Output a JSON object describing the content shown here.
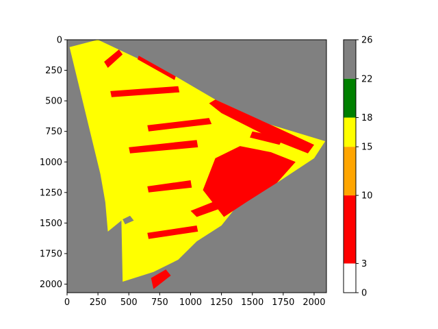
{
  "chart_data": {
    "type": "heatmap",
    "title": "",
    "xlabel": "",
    "ylabel": "",
    "xlim": [
      0,
      2100
    ],
    "ylim": [
      2070,
      0
    ],
    "x_ticks": [
      "0",
      "250",
      "500",
      "750",
      "1000",
      "1250",
      "1500",
      "1750",
      "2000"
    ],
    "y_ticks": [
      "0",
      "250",
      "500",
      "750",
      "1000",
      "1250",
      "1500",
      "1750",
      "2000"
    ],
    "background_color": "#808080",
    "colorbar": {
      "vmin": 0,
      "vmax": 26,
      "tick_labels": [
        "0",
        "3",
        "10",
        "15",
        "18",
        "22",
        "26"
      ],
      "segments": [
        {
          "from": 0,
          "to": 3,
          "color": "#ffffff"
        },
        {
          "from": 3,
          "to": 10,
          "color": "#ff0000"
        },
        {
          "from": 10,
          "to": 15,
          "color": "#ffa500"
        },
        {
          "from": 15,
          "to": 18,
          "color": "#ffff00"
        },
        {
          "from": 18,
          "to": 22,
          "color": "#008000"
        },
        {
          "from": 22,
          "to": 26,
          "color": "#808080"
        }
      ]
    },
    "regions": [
      {
        "class": "main-field",
        "color": "#ffff00",
        "polygon": [
          [
            20,
            60
          ],
          [
            250,
            0
          ],
          [
            880,
            300
          ],
          [
            1200,
            490
          ],
          [
            1630,
            690
          ],
          [
            2090,
            830
          ],
          [
            2000,
            970
          ],
          [
            1700,
            1170
          ],
          [
            1400,
            1330
          ],
          [
            1250,
            1520
          ],
          [
            1050,
            1650
          ],
          [
            900,
            1800
          ],
          [
            700,
            1900
          ],
          [
            450,
            1980
          ],
          [
            440,
            1480
          ],
          [
            330,
            1570
          ],
          [
            310,
            1330
          ],
          [
            270,
            1100
          ]
        ]
      },
      {
        "class": "red-dense",
        "color": "#ff0000",
        "polygon": [
          [
            1100,
            1230
          ],
          [
            1200,
            970
          ],
          [
            1400,
            870
          ],
          [
            1650,
            920
          ],
          [
            1850,
            1000
          ],
          [
            1700,
            1170
          ],
          [
            1450,
            1330
          ],
          [
            1270,
            1450
          ]
        ]
      },
      {
        "class": "red-band",
        "color": "#ff0000",
        "polygon": [
          [
            580,
            130
          ],
          [
            880,
            300
          ],
          [
            870,
            330
          ],
          [
            570,
            160
          ]
        ]
      },
      {
        "class": "red-band",
        "color": "#ff0000",
        "polygon": [
          [
            1200,
            490
          ],
          [
            1700,
            720
          ],
          [
            2000,
            860
          ],
          [
            1950,
            930
          ],
          [
            1700,
            830
          ],
          [
            1250,
            600
          ],
          [
            1150,
            520
          ]
        ]
      },
      {
        "class": "red-band",
        "color": "#ff0000",
        "polygon": [
          [
            650,
            700
          ],
          [
            1150,
            640
          ],
          [
            1170,
            690
          ],
          [
            660,
            750
          ]
        ]
      },
      {
        "class": "red-band",
        "color": "#ff0000",
        "polygon": [
          [
            350,
            420
          ],
          [
            900,
            380
          ],
          [
            910,
            430
          ],
          [
            360,
            470
          ]
        ]
      },
      {
        "class": "red-band",
        "color": "#ff0000",
        "polygon": [
          [
            500,
            880
          ],
          [
            1050,
            820
          ],
          [
            1060,
            880
          ],
          [
            510,
            930
          ]
        ]
      },
      {
        "class": "red-band",
        "color": "#ff0000",
        "polygon": [
          [
            650,
            1200
          ],
          [
            1000,
            1150
          ],
          [
            1010,
            1210
          ],
          [
            660,
            1250
          ]
        ]
      },
      {
        "class": "red-band",
        "color": "#ff0000",
        "polygon": [
          [
            650,
            1580
          ],
          [
            1050,
            1520
          ],
          [
            1060,
            1570
          ],
          [
            660,
            1630
          ]
        ]
      },
      {
        "class": "red-band",
        "color": "#ff0000",
        "polygon": [
          [
            1000,
            1400
          ],
          [
            1250,
            1300
          ],
          [
            1300,
            1360
          ],
          [
            1050,
            1450
          ]
        ]
      },
      {
        "class": "red-band",
        "color": "#ff0000",
        "polygon": [
          [
            680,
            1950
          ],
          [
            800,
            1880
          ],
          [
            840,
            1930
          ],
          [
            700,
            2040
          ]
        ]
      },
      {
        "class": "red-band",
        "color": "#ff0000",
        "polygon": [
          [
            1500,
            750
          ],
          [
            1750,
            800
          ],
          [
            1720,
            860
          ],
          [
            1480,
            800
          ]
        ]
      },
      {
        "class": "red-band",
        "color": "#ff0000",
        "polygon": [
          [
            300,
            180
          ],
          [
            420,
            80
          ],
          [
            450,
            120
          ],
          [
            330,
            230
          ]
        ]
      },
      {
        "class": "gray-hole",
        "color": "#808080",
        "polygon": [
          [
            450,
            1470
          ],
          [
            510,
            1440
          ],
          [
            540,
            1480
          ],
          [
            470,
            1510
          ]
        ]
      }
    ]
  }
}
